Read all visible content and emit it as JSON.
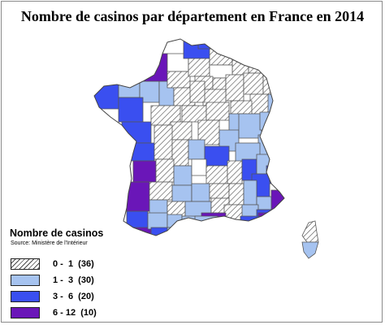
{
  "title": "Nombre de casinos par département en France en 2014",
  "legend": {
    "title": "Nombre de casinos",
    "source": "Source: Ministère de l'Intérieur",
    "classes": [
      {
        "label": "0 -  1  (36)",
        "min": 0,
        "max": 1,
        "count": 36,
        "style": "hatch",
        "color": "#ffffff"
      },
      {
        "label": "1 -  3  (30)",
        "min": 1,
        "max": 3,
        "count": 30,
        "style": "solid",
        "color": "#a6c3f0"
      },
      {
        "label": "3 -  6  (20)",
        "min": 3,
        "max": 6,
        "count": 20,
        "style": "solid",
        "color": "#3a4ff0"
      },
      {
        "label": "6 - 12  (10)",
        "min": 6,
        "max": 12,
        "count": 10,
        "style": "solid",
        "color": "#6a16b8"
      }
    ]
  },
  "colors": {
    "border": "#555555",
    "hatch_line": "#4a4a4a"
  }
}
